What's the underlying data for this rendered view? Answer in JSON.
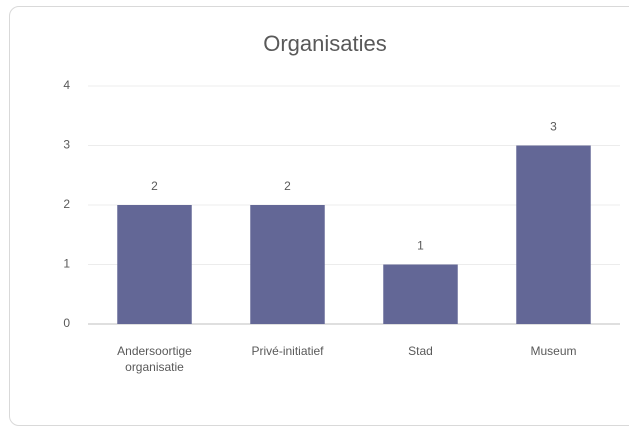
{
  "chart_data": {
    "type": "bar",
    "title": "Organisaties",
    "categories": [
      "Andersoortige organisatie",
      "Privé-initiatief",
      "Stad",
      "Museum"
    ],
    "values": [
      2,
      2,
      1,
      3
    ],
    "color": "#636796",
    "ylim": [
      0,
      4
    ],
    "yticks": [
      0,
      1,
      2,
      3,
      4
    ],
    "grid": true
  }
}
